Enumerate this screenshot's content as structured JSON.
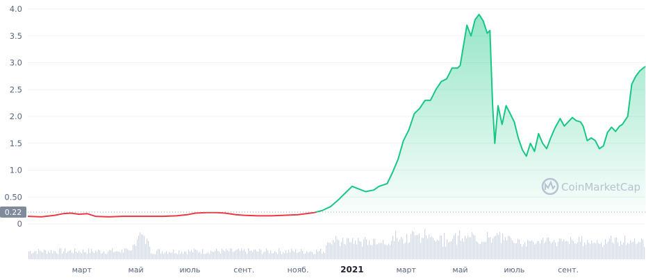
{
  "chart_data": {
    "type": "area",
    "title": "",
    "xlabel": "",
    "ylabel": "",
    "ylim": [
      0,
      4.0
    ],
    "grid": true,
    "legend": "none",
    "baseline_value": 0.22,
    "baseline_label": "0.22",
    "y_ticks": [
      {
        "value": 4.0,
        "label": "4.0"
      },
      {
        "value": 3.5,
        "label": "3.5"
      },
      {
        "value": 3.0,
        "label": "3.0"
      },
      {
        "value": 2.5,
        "label": "2.5"
      },
      {
        "value": 2.0,
        "label": "2.0"
      },
      {
        "value": 1.5,
        "label": "1.5"
      },
      {
        "value": 1.0,
        "label": "1.0"
      },
      {
        "value": 0.5,
        "label": "0.50"
      },
      {
        "value": 0,
        "label": "0"
      }
    ],
    "x_ticks": [
      {
        "month": 2,
        "label": "март",
        "bold": false
      },
      {
        "month": 4,
        "label": "май",
        "bold": false
      },
      {
        "month": 6,
        "label": "июль",
        "bold": false
      },
      {
        "month": 8,
        "label": "сент.",
        "bold": false
      },
      {
        "month": 10,
        "label": "нояб.",
        "bold": false
      },
      {
        "month": 12,
        "label": "2021",
        "bold": true
      },
      {
        "month": 14,
        "label": "март",
        "bold": false
      },
      {
        "month": 16,
        "label": "май",
        "bold": false
      },
      {
        "month": 18,
        "label": "июль",
        "bold": false
      },
      {
        "month": 20,
        "label": "сент.",
        "bold": false
      }
    ],
    "x_range_months": [
      0,
      22.85
    ],
    "x_units": "months since January 2020",
    "series": [
      {
        "values": [
          [
            0.0,
            0.14
          ],
          [
            0.5,
            0.13
          ],
          [
            1.0,
            0.16
          ],
          [
            1.3,
            0.19
          ],
          [
            1.6,
            0.2
          ],
          [
            1.9,
            0.18
          ],
          [
            2.2,
            0.19
          ],
          [
            2.5,
            0.14
          ],
          [
            3.0,
            0.13
          ],
          [
            3.5,
            0.14
          ],
          [
            4.0,
            0.14
          ],
          [
            4.5,
            0.14
          ],
          [
            5.0,
            0.14
          ],
          [
            5.5,
            0.15
          ],
          [
            5.9,
            0.17
          ],
          [
            6.2,
            0.2
          ],
          [
            6.6,
            0.21
          ],
          [
            7.0,
            0.21
          ],
          [
            7.3,
            0.2
          ],
          [
            7.7,
            0.17
          ],
          [
            8.0,
            0.16
          ],
          [
            8.5,
            0.15
          ],
          [
            9.0,
            0.15
          ],
          [
            9.5,
            0.16
          ],
          [
            10.0,
            0.17
          ],
          [
            10.3,
            0.19
          ],
          [
            10.6,
            0.21
          ],
          [
            10.9,
            0.25
          ],
          [
            11.2,
            0.32
          ],
          [
            11.5,
            0.45
          ],
          [
            11.8,
            0.6
          ],
          [
            12.0,
            0.7
          ],
          [
            12.2,
            0.66
          ],
          [
            12.5,
            0.6
          ],
          [
            12.8,
            0.63
          ],
          [
            13.0,
            0.7
          ],
          [
            13.3,
            0.75
          ],
          [
            13.5,
            0.96
          ],
          [
            13.7,
            1.2
          ],
          [
            13.9,
            1.55
          ],
          [
            14.1,
            1.75
          ],
          [
            14.3,
            2.05
          ],
          [
            14.5,
            2.15
          ],
          [
            14.7,
            2.3
          ],
          [
            14.9,
            2.3
          ],
          [
            15.1,
            2.5
          ],
          [
            15.3,
            2.65
          ],
          [
            15.5,
            2.7
          ],
          [
            15.7,
            2.9
          ],
          [
            15.9,
            2.9
          ],
          [
            16.0,
            2.95
          ],
          [
            16.1,
            3.25
          ],
          [
            16.25,
            3.7
          ],
          [
            16.4,
            3.5
          ],
          [
            16.55,
            3.8
          ],
          [
            16.7,
            3.9
          ],
          [
            16.85,
            3.78
          ],
          [
            17.0,
            3.55
          ],
          [
            17.1,
            3.6
          ],
          [
            17.2,
            2.2
          ],
          [
            17.28,
            1.5
          ],
          [
            17.4,
            2.2
          ],
          [
            17.55,
            1.85
          ],
          [
            17.7,
            2.2
          ],
          [
            17.85,
            2.05
          ],
          [
            18.0,
            1.9
          ],
          [
            18.15,
            1.6
          ],
          [
            18.3,
            1.38
          ],
          [
            18.45,
            1.26
          ],
          [
            18.6,
            1.5
          ],
          [
            18.75,
            1.35
          ],
          [
            18.9,
            1.68
          ],
          [
            19.05,
            1.5
          ],
          [
            19.2,
            1.4
          ],
          [
            19.35,
            1.6
          ],
          [
            19.5,
            1.78
          ],
          [
            19.7,
            1.96
          ],
          [
            19.85,
            1.82
          ],
          [
            20.0,
            1.9
          ],
          [
            20.15,
            1.98
          ],
          [
            20.3,
            1.92
          ],
          [
            20.45,
            1.9
          ],
          [
            20.55,
            1.82
          ],
          [
            20.7,
            1.55
          ],
          [
            20.85,
            1.6
          ],
          [
            21.0,
            1.55
          ],
          [
            21.15,
            1.4
          ],
          [
            21.3,
            1.45
          ],
          [
            21.45,
            1.7
          ],
          [
            21.6,
            1.8
          ],
          [
            21.75,
            1.72
          ],
          [
            21.9,
            1.82
          ],
          [
            22.0,
            1.85
          ],
          [
            22.2,
            2.0
          ],
          [
            22.35,
            2.6
          ],
          [
            22.5,
            2.75
          ],
          [
            22.65,
            2.85
          ],
          [
            22.85,
            2.93
          ]
        ]
      }
    ]
  },
  "colors": {
    "above_baseline": "#16c784",
    "below_baseline": "#ea3943",
    "fill_top": "#16c784",
    "grid": "#eff2f5",
    "baseline_dots": "#a1a7bb",
    "volume": "#cfd6e4",
    "axis_text": "#58667e",
    "price_tag_bg": "#808a9d",
    "watermark": "#b8c1cf"
  },
  "watermark": {
    "text": "CoinMarketCap",
    "icon": "coinmarketcap-logo-icon"
  }
}
